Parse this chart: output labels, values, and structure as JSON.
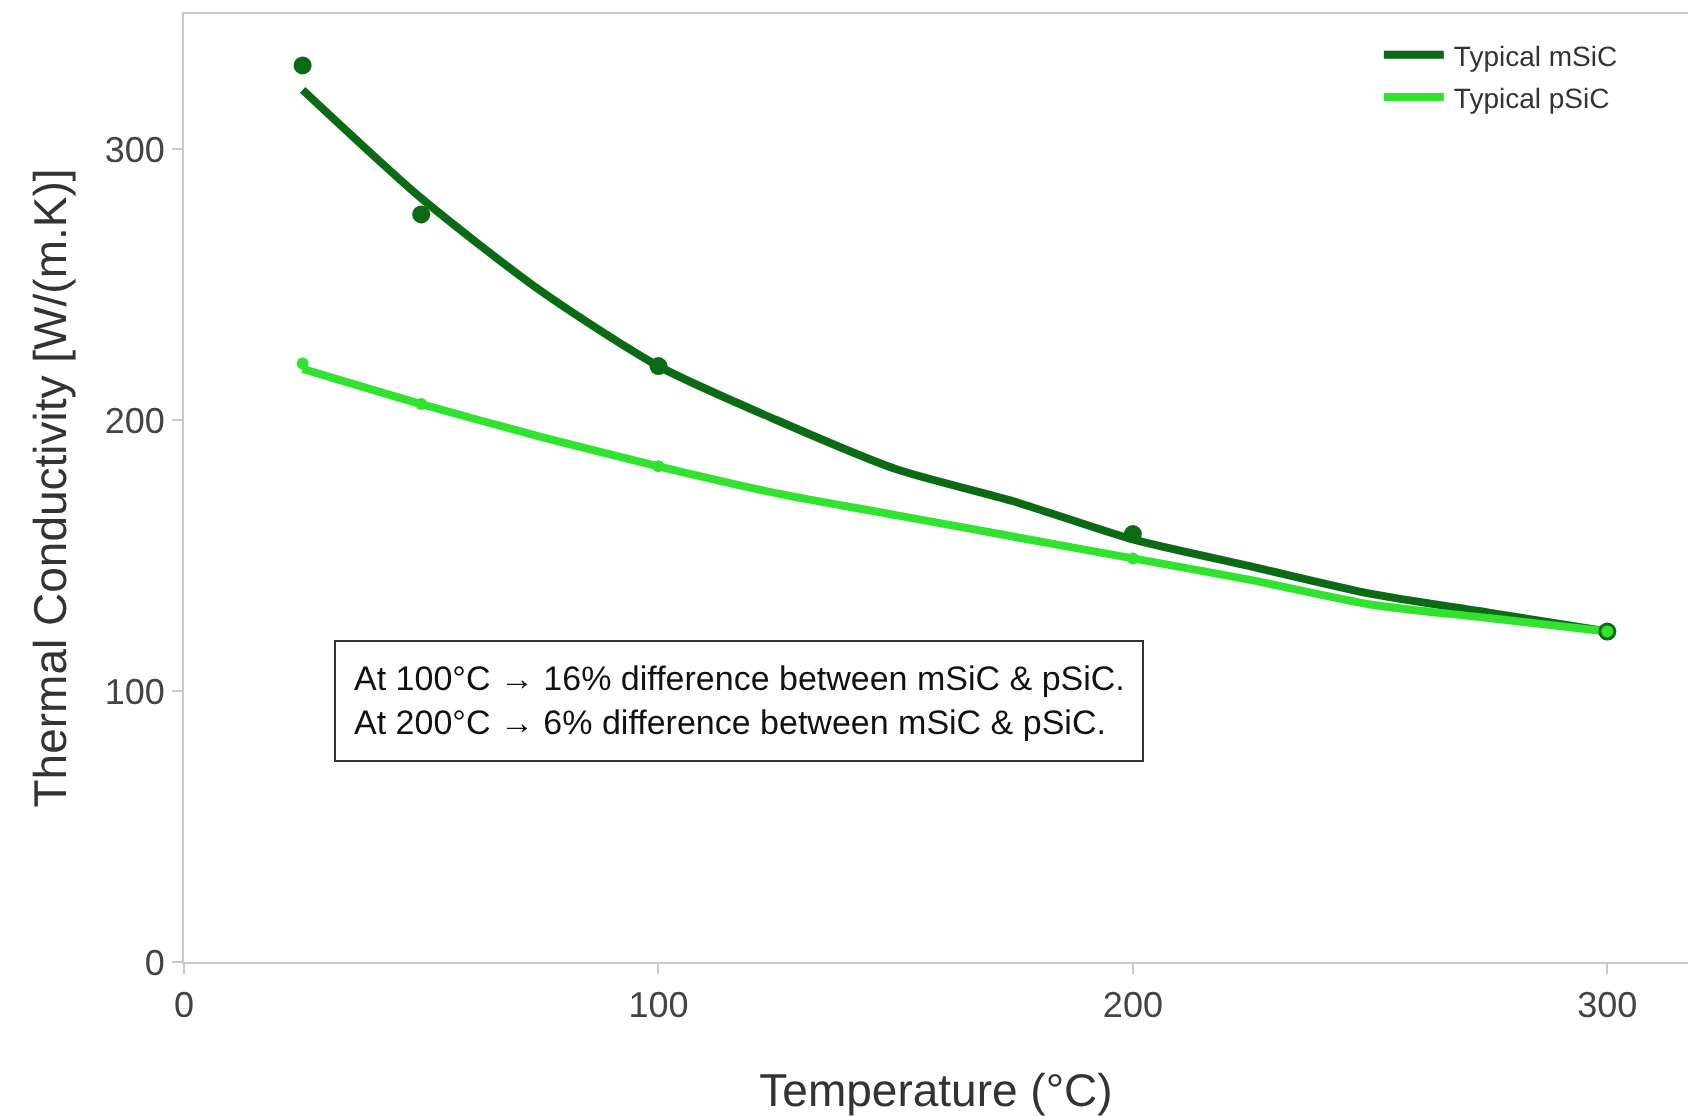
{
  "chart_data": {
    "type": "line",
    "xlabel": "Temperature (°C)",
    "ylabel": "Thermal Conductivity [W/(m.K)]",
    "xlim": [
      0,
      317
    ],
    "ylim": [
      0,
      350
    ],
    "xticks": [
      0,
      100,
      200,
      300
    ],
    "yticks": [
      0,
      100,
      200,
      300
    ],
    "grid": false,
    "legend": "top right",
    "line_style": "solid",
    "series": [
      {
        "name": "Typical mSiC",
        "color": "#0b6a14",
        "marker": "none",
        "x": [
          25,
          50,
          75,
          100,
          125,
          150,
          175,
          200,
          225,
          250,
          275,
          300
        ],
        "values": [
          322,
          282,
          248,
          220,
          200,
          182,
          170,
          156,
          146,
          136,
          129,
          122
        ]
      },
      {
        "name": "Typical pSiC",
        "color": "#2fe32f",
        "marker": "none",
        "x": [
          25,
          50,
          75,
          100,
          125,
          150,
          175,
          200,
          225,
          250,
          275,
          300
        ],
        "values": [
          219,
          206,
          194,
          183,
          173,
          165,
          157,
          149,
          141,
          132,
          127,
          122
        ]
      },
      {
        "type": "scatter",
        "color": "#0b6a14",
        "marker": "circle",
        "x": [
          25,
          50,
          100,
          200,
          300
        ],
        "values": [
          331,
          276,
          220,
          158,
          122
        ]
      },
      {
        "type": "scatter",
        "color": "#2fe32f",
        "marker": "circle",
        "x": [
          25,
          50,
          100,
          200,
          300
        ],
        "values": [
          221,
          206,
          183,
          149,
          122
        ]
      }
    ],
    "annotations": [
      "At 100°C → 16% difference between mSiC & pSiC.\nAt 200°C → 6% difference between mSiC & pSiC."
    ]
  }
}
